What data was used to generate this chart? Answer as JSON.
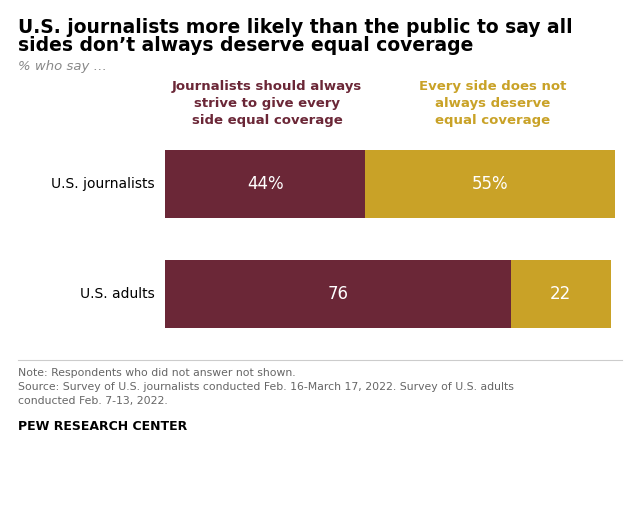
{
  "title_line1": "U.S. journalists more likely than the public to say all",
  "title_line2": "sides don’t always deserve equal coverage",
  "subtitle": "% who say …",
  "categories": [
    "U.S. journalists",
    "U.S. adults"
  ],
  "col1_values": [
    44,
    76
  ],
  "col2_values": [
    55,
    22
  ],
  "col1_labels": [
    "44%",
    "76"
  ],
  "col2_labels": [
    "55%",
    "22"
  ],
  "col1_color": "#6b2737",
  "col2_color": "#c9a227",
  "col1_header": "Journalists should always\nstrive to give every\nside equal coverage",
  "col2_header": "Every side does not\nalways deserve\nequal coverage",
  "note_line1": "Note: Respondents who did not answer not shown.",
  "note_line2": "Source: Survey of U.S. journalists conducted Feb. 16-March 17, 2022. Survey of U.S. adults",
  "note_line3": "conducted Feb. 7-13, 2022.",
  "footer": "PEW RESEARCH CENTER",
  "background_color": "#ffffff"
}
